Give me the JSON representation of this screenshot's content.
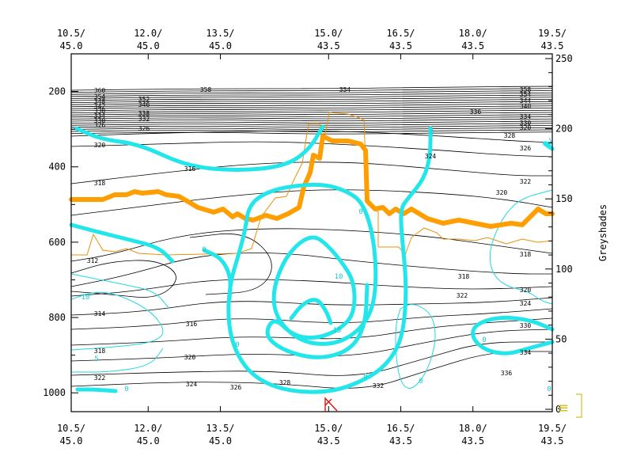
{
  "chart_data": {
    "type": "contour",
    "title": "",
    "colors": {
      "isentrope": "#000000",
      "cyan_thick": "#22e6ea",
      "cyan_thin": "#22d8e0",
      "orange_thick": "#ff9e00",
      "orange_thin": "#e8900c",
      "marker": "#dd1111",
      "legend_glyph": "#d4c020"
    },
    "x_axis": {
      "top_ticks": [
        {
          "lon": "10.5/",
          "lat": "45.0"
        },
        {
          "lon": "12.0/",
          "lat": "45.0"
        },
        {
          "lon": "13.5/",
          "lat": "45.0"
        },
        {
          "lon": "15.0/",
          "lat": "43.5"
        },
        {
          "lon": "16.5/",
          "lat": "43.5"
        },
        {
          "lon": "18.0/",
          "lat": "43.5"
        },
        {
          "lon": "19.5/",
          "lat": "43.5"
        }
      ],
      "bottom_ticks": [
        {
          "lon": "10.5/",
          "lat": "45.0"
        },
        {
          "lon": "12.0/",
          "lat": "45.0"
        },
        {
          "lon": "13.5/",
          "lat": "45.0"
        },
        {
          "lon": "15.0/",
          "lat": "43.5"
        },
        {
          "lon": "16.5/",
          "lat": "43.5"
        },
        {
          "lon": "18.0/",
          "lat": "43.5"
        },
        {
          "lon": "19.5/",
          "lat": "43.5"
        }
      ],
      "tick_fractions": [
        0.0,
        0.16,
        0.31,
        0.535,
        0.685,
        0.835,
        1.0
      ]
    },
    "y_axis_left": {
      "label": "",
      "range": [
        1050,
        100
      ],
      "ticks": [
        "200",
        "400",
        "600",
        "800",
        "1000"
      ]
    },
    "y_axis_right": {
      "label": "Greyshades",
      "range": [
        0,
        250
      ],
      "ticks": [
        "0",
        "50",
        "100",
        "150",
        "200",
        "250"
      ]
    },
    "isentrope_labels": [
      "312",
      "314",
      "316",
      "318",
      "320",
      "322",
      "324",
      "326",
      "328",
      "330",
      "332",
      "334",
      "336",
      "338",
      "340",
      "342",
      "344",
      "346",
      "348",
      "350",
      "352",
      "354",
      "356",
      "358",
      "360"
    ],
    "cyan_labels": [
      "0",
      "5",
      "10",
      "15"
    ],
    "legend_glyph": "≡"
  },
  "ui": {
    "menu_glyph": "≡"
  }
}
